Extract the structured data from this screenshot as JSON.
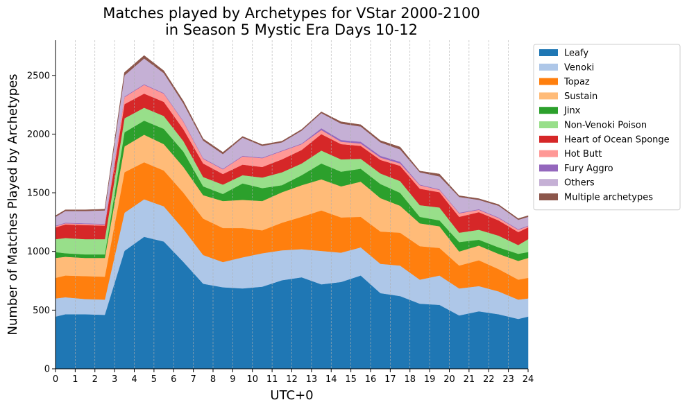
{
  "chart_data": {
    "type": "area",
    "stacked": true,
    "title": "Matches played by Archetypes for VStar 2000-2100\nin Season 5 Mystic Era Days 10-12",
    "xlabel": "UTC+0",
    "ylabel": "Number of Matches Played by Archetypes",
    "xlim": [
      0,
      24
    ],
    "ylim": [
      0,
      2800
    ],
    "xticks": [
      0,
      1,
      2,
      3,
      4,
      5,
      6,
      7,
      8,
      9,
      10,
      11,
      12,
      13,
      14,
      15,
      16,
      17,
      18,
      19,
      20,
      21,
      22,
      23,
      24
    ],
    "yticks": [
      0,
      500,
      1000,
      1500,
      2000,
      2500
    ],
    "x_grid": true,
    "y_grid": false,
    "legend_position": "outside-right",
    "x": [
      0,
      0.5,
      1.5,
      2.5,
      3.5,
      4.5,
      5.5,
      6.5,
      7.5,
      8.5,
      9.5,
      10.5,
      11.5,
      12.5,
      13.5,
      14.5,
      15.5,
      16.5,
      17.5,
      18.5,
      19.5,
      20.5,
      21.5,
      22.5,
      23.5,
      24
    ],
    "series": [
      {
        "name": "Leafy",
        "color": "#1f77b4",
        "values": [
          445,
          465,
          465,
          460,
          1005,
          1125,
          1085,
          910,
          725,
          695,
          685,
          700,
          755,
          780,
          720,
          740,
          795,
          645,
          620,
          555,
          545,
          455,
          490,
          465,
          425,
          445
        ]
      },
      {
        "name": "Venoki",
        "color": "#aec7e8",
        "values": [
          155,
          145,
          130,
          130,
          325,
          320,
          300,
          280,
          245,
          215,
          265,
          285,
          255,
          240,
          285,
          250,
          240,
          250,
          260,
          205,
          250,
          230,
          215,
          195,
          165,
          155
        ]
      },
      {
        "name": "Topaz",
        "color": "#ff7f0e",
        "values": [
          175,
          185,
          195,
          195,
          345,
          315,
          305,
          310,
          310,
          290,
          250,
          195,
          235,
          275,
          345,
          300,
          260,
          275,
          280,
          285,
          235,
          195,
          220,
          190,
          170,
          175
        ]
      },
      {
        "name": "Sustain",
        "color": "#ffbb78",
        "values": [
          170,
          160,
          155,
          160,
          220,
          235,
          225,
          220,
          200,
          230,
          240,
          250,
          260,
          270,
          265,
          265,
          300,
          285,
          230,
          195,
          185,
          120,
          125,
          130,
          160,
          170
        ]
      },
      {
        "name": "Jinx",
        "color": "#2ca02c",
        "values": [
          50,
          30,
          30,
          30,
          120,
          120,
          130,
          130,
          75,
          60,
          140,
          110,
          60,
          85,
          135,
          125,
          110,
          120,
          110,
          55,
          50,
          80,
          50,
          55,
          60,
          50
        ]
      },
      {
        "name": "Non-Venoki Poison",
        "color": "#98df8a",
        "values": [
          110,
          130,
          130,
          130,
          120,
          110,
          110,
          90,
          80,
          80,
          70,
          90,
          110,
          100,
          110,
          105,
          85,
          90,
          100,
          100,
          110,
          80,
          85,
          100,
          75,
          110
        ]
      },
      {
        "name": "Heart of Ocean Sponge",
        "color": "#d62728",
        "values": [
          100,
          115,
          120,
          115,
          120,
          120,
          120,
          100,
          115,
          90,
          90,
          90,
          110,
          115,
          140,
          130,
          110,
          115,
          130,
          140,
          130,
          135,
          150,
          130,
          110,
          100
        ]
      },
      {
        "name": "Hot Butt",
        "color": "#ff9896",
        "values": [
          10,
          10,
          10,
          10,
          60,
          75,
          70,
          65,
          40,
          40,
          70,
          75,
          70,
          50,
          35,
          20,
          20,
          20,
          20,
          30,
          20,
          30,
          20,
          20,
          20,
          10
        ]
      },
      {
        "name": "Fury Aggro",
        "color": "#9467bd",
        "values": [
          5,
          5,
          5,
          5,
          5,
          5,
          5,
          5,
          5,
          5,
          5,
          5,
          5,
          5,
          15,
          15,
          15,
          15,
          15,
          5,
          5,
          5,
          5,
          5,
          5,
          5
        ]
      },
      {
        "name": "Others",
        "color": "#c5b0d5",
        "values": [
          75,
          100,
          105,
          115,
          180,
          220,
          170,
          150,
          150,
          125,
          155,
          100,
          70,
          110,
          130,
          140,
          130,
          115,
          105,
          105,
          110,
          135,
          80,
          100,
          80,
          75
        ]
      },
      {
        "name": "Multiple archetypes",
        "color": "#8c564b",
        "values": [
          10,
          10,
          10,
          10,
          25,
          25,
          20,
          20,
          15,
          15,
          10,
          10,
          10,
          10,
          10,
          15,
          15,
          15,
          20,
          10,
          20,
          10,
          10,
          10,
          10,
          10
        ]
      }
    ]
  }
}
